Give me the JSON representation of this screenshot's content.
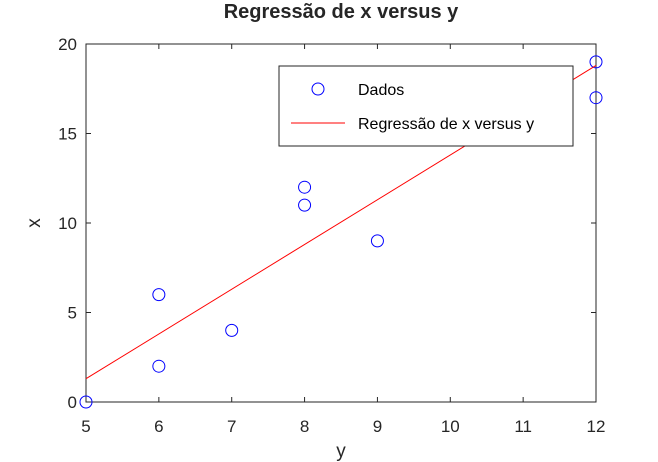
{
  "chart_data": {
    "type": "scatter",
    "title": "Regressão de x versus y",
    "xlabel": "y",
    "ylabel": "x",
    "xlim": [
      5,
      12
    ],
    "ylim": [
      0,
      20
    ],
    "xticks": [
      5,
      6,
      7,
      8,
      9,
      10,
      11,
      12
    ],
    "yticks": [
      0,
      5,
      10,
      15,
      20
    ],
    "grid": false,
    "legend_position": "top-right",
    "series": [
      {
        "name": "Dados",
        "kind": "scatter",
        "marker": "circle-open",
        "color": "#0000ff",
        "points": [
          [
            5,
            0
          ],
          [
            6,
            2
          ],
          [
            6,
            6
          ],
          [
            7,
            4
          ],
          [
            8,
            11
          ],
          [
            8,
            12
          ],
          [
            9,
            9
          ],
          [
            12,
            17
          ],
          [
            12,
            19
          ]
        ]
      },
      {
        "name": "Regressão de x versus y",
        "kind": "line",
        "color": "#ff0000",
        "points": [
          [
            5,
            1.3
          ],
          [
            12,
            18.8
          ]
        ]
      }
    ]
  }
}
